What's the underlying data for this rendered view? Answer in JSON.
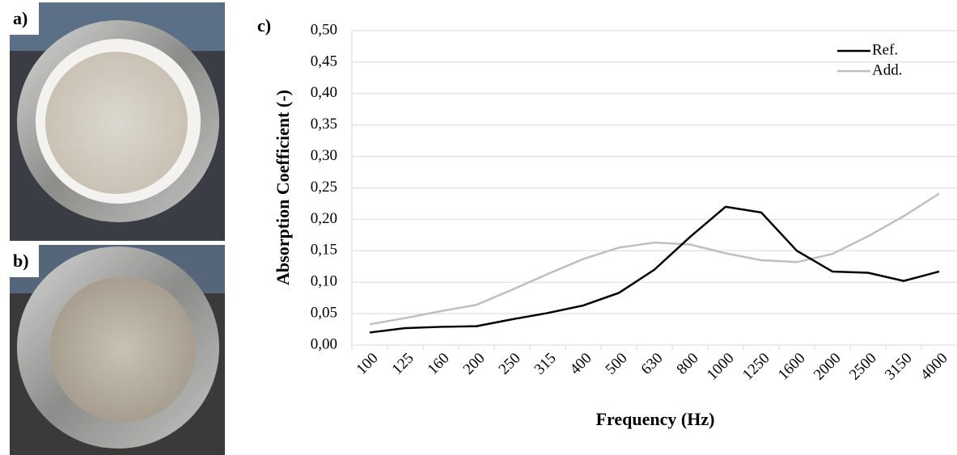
{
  "panels": {
    "a": "a)",
    "b": "b)"
  },
  "chart_data": {
    "type": "line",
    "panel_label": "c)",
    "x_label": "Frequency (Hz)",
    "y_label": "Absorption Coefficient (-)",
    "categories": [
      "100",
      "125",
      "160",
      "200",
      "250",
      "315",
      "400",
      "500",
      "630",
      "800",
      "1000",
      "1250",
      "1600",
      "2000",
      "2500",
      "3150",
      "4000"
    ],
    "series": [
      {
        "name": "Ref.",
        "color": "#000000",
        "values": [
          0.02,
          0.027,
          0.029,
          0.03,
          0.041,
          0.051,
          0.063,
          0.083,
          0.12,
          0.172,
          0.22,
          0.211,
          0.15,
          0.117,
          0.115,
          0.102,
          0.117
        ]
      },
      {
        "name": "Add.",
        "color": "#bfbfbf",
        "values": [
          0.033,
          0.043,
          0.054,
          0.064,
          0.088,
          0.113,
          0.137,
          0.155,
          0.163,
          0.16,
          0.146,
          0.135,
          0.132,
          0.145,
          0.173,
          0.205,
          0.241
        ]
      }
    ],
    "ylim": [
      0,
      0.5
    ],
    "yticks": [
      {
        "value": 0,
        "label": "0,00"
      },
      {
        "value": 0.05,
        "label": "0,05"
      },
      {
        "value": 0.1,
        "label": "0,10"
      },
      {
        "value": 0.15,
        "label": "0,15"
      },
      {
        "value": 0.2,
        "label": "0,20"
      },
      {
        "value": 0.25,
        "label": "0,25"
      },
      {
        "value": 0.3,
        "label": "0,30"
      },
      {
        "value": 0.35,
        "label": "0,35"
      },
      {
        "value": 0.4,
        "label": "0,40"
      },
      {
        "value": 0.45,
        "label": "0,45"
      },
      {
        "value": 0.5,
        "label": "0,50"
      }
    ],
    "grid": true,
    "legend": "top-right"
  }
}
